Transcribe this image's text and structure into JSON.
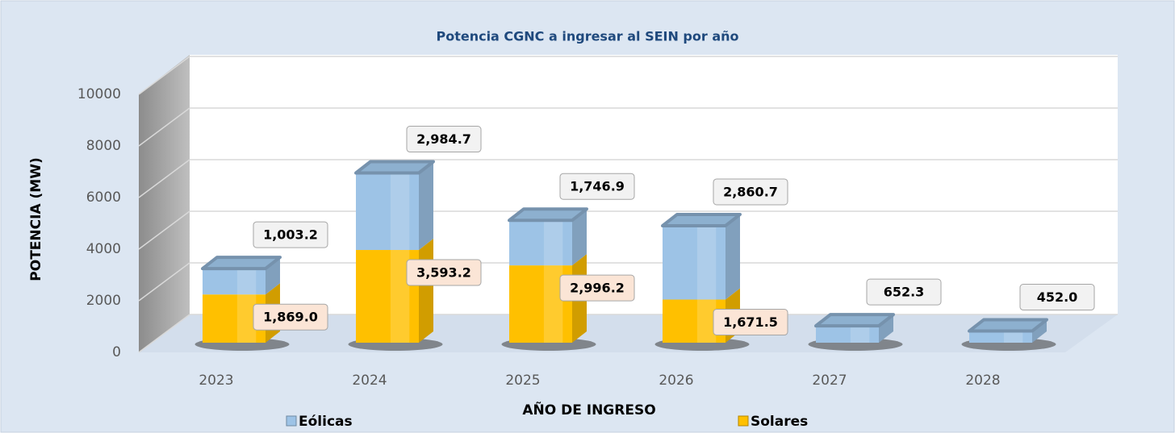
{
  "chart_data": {
    "type": "bar3d_stacked",
    "title": "Potencia CGNC a ingresar al SEIN por año",
    "x_label": "AÑO DE INGRESO",
    "y_label": "POTENCIA (MW)",
    "categories": [
      "2023",
      "2024",
      "2025",
      "2026",
      "2027",
      "2028"
    ],
    "series": [
      {
        "name": "Solares",
        "color": "#ffc000",
        "values": [
          1869.0,
          3593.2,
          2996.2,
          1671.5,
          null,
          null
        ],
        "value_labels": [
          "1,869.0",
          "3,593.2",
          "2,996.2",
          "1,671.5",
          null,
          null
        ]
      },
      {
        "name": "Eólicas",
        "color": "#9dc3e6",
        "values": [
          1003.2,
          2984.7,
          1746.9,
          2860.7,
          652.3,
          452.0
        ],
        "value_labels": [
          "1,003.2",
          "2,984.7",
          "1,746.9",
          "2,860.7",
          "652.3",
          "452.0"
        ]
      }
    ],
    "ylim": [
      0,
      10000
    ],
    "yticks": [
      0,
      2000,
      4000,
      6000,
      8000,
      10000
    ],
    "grid": true
  }
}
